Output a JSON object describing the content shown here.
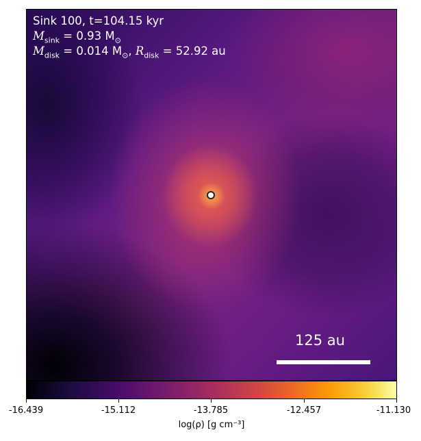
{
  "header": {
    "title": "Sink 100, t=104.15 kyr",
    "sink_mass_label": "M",
    "sink_mass_sub": "sink",
    "sink_mass_value": " = 0.93 M",
    "sink_mass_unit_sub": "⊙",
    "disk_mass_label": "M",
    "disk_mass_sub": "disk",
    "disk_mass_value": " = 0.014 M",
    "disk_mass_unit_sub": "⊙",
    "disk_radius_sep": ", ",
    "disk_radius_label": "R",
    "disk_radius_sub": "disk",
    "disk_radius_value": " = 52.92 au"
  },
  "scalebar": {
    "label": "125 au"
  },
  "colorbar": {
    "ticks": [
      "-16.439",
      "-15.112",
      "-13.785",
      "-12.457",
      "-11.130"
    ],
    "label": "log(ρ) [g cm⁻³]",
    "colormap": "inferno"
  },
  "colors": {
    "sink_marker_fill": "#ffffff",
    "sink_marker_edge": "#222222"
  }
}
